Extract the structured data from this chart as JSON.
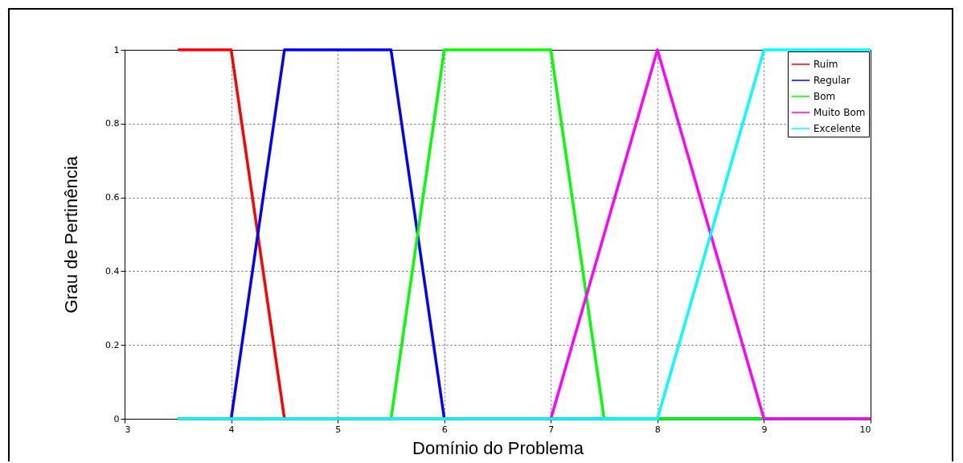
{
  "chart_data": {
    "type": "line",
    "xlabel": "Domínio do Problema",
    "ylabel": "Grau de Pertinência",
    "xlim": [
      3,
      10
    ],
    "ylim": [
      0,
      1
    ],
    "xticks": [
      3,
      4,
      5,
      6,
      7,
      8,
      9,
      10
    ],
    "yticks": [
      0,
      0.2,
      0.4,
      0.6,
      0.8,
      1
    ],
    "grid": true,
    "legend": "top right",
    "line_style": "solid",
    "series": [
      {
        "name": "Ruim",
        "color": "#ff0000",
        "x": [
          3.5,
          4,
          4.5
        ],
        "values": [
          1,
          1,
          0
        ]
      },
      {
        "name": "Regular",
        "color": "#0000ff",
        "x": [
          3.5,
          4,
          4.5,
          5.5,
          6,
          10
        ],
        "values": [
          0,
          0,
          1,
          1,
          0,
          0
        ]
      },
      {
        "name": "Bom",
        "color": "#00ff00",
        "x": [
          3.5,
          5.5,
          6,
          7,
          7.5,
          10
        ],
        "values": [
          0,
          0,
          1,
          1,
          0,
          0
        ]
      },
      {
        "name": "Muito Bom",
        "color": "#ff00ff",
        "x": [
          3.5,
          7,
          8,
          9,
          10
        ],
        "values": [
          0,
          0,
          1,
          0,
          0
        ]
      },
      {
        "name": "Excelente",
        "color": "#00ffff",
        "x": [
          3.5,
          8,
          9,
          10
        ],
        "values": [
          0,
          0,
          1,
          1
        ]
      }
    ]
  }
}
